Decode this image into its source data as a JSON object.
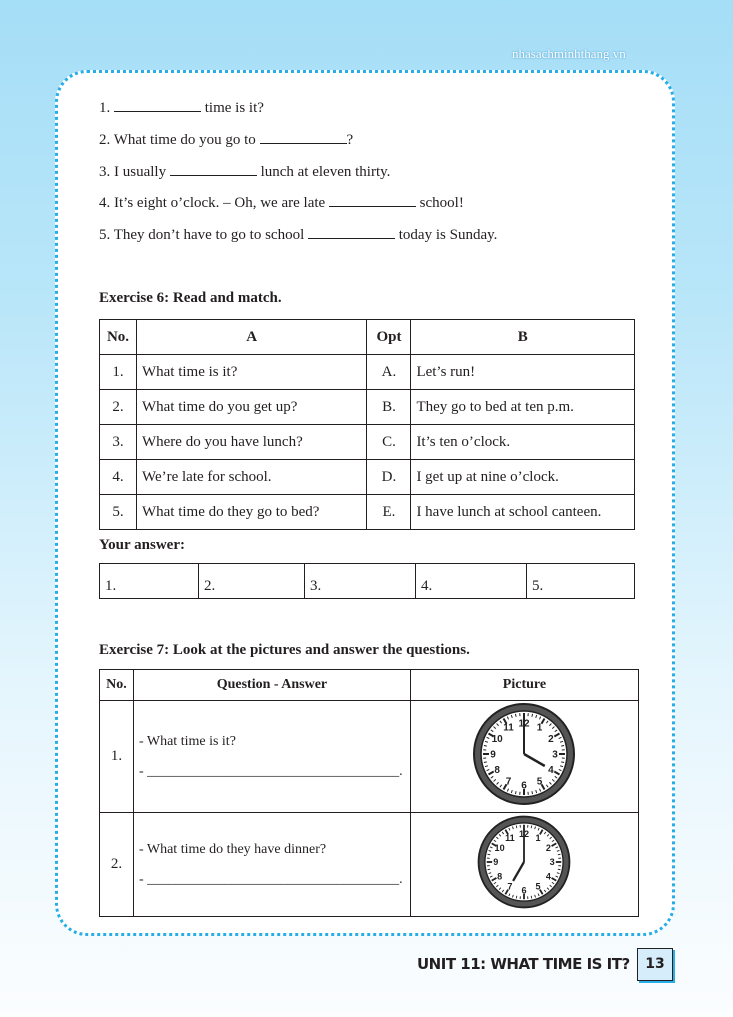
{
  "site": "nhasachminhthang.vn",
  "exercise5": {
    "items": [
      {
        "num": "1.",
        "before": "",
        "after": "time is it?"
      },
      {
        "num": "2.",
        "before": "What time do you go to",
        "after": "?"
      },
      {
        "num": "3.",
        "before": "I usually",
        "after": "lunch at eleven thirty."
      },
      {
        "num": "4.",
        "before": "It’s eight o’clock. – Oh, we are late",
        "after": "school!"
      },
      {
        "num": "5.",
        "before": "They don’t have to go to school",
        "after": "today is Sunday."
      }
    ]
  },
  "exercise6": {
    "title": "Exercise 6: Read and match.",
    "headers": [
      "No.",
      "A",
      "Opt",
      "B"
    ],
    "rows": [
      [
        "1.",
        "What time is it?",
        "A.",
        "Let’s run!"
      ],
      [
        "2.",
        "What time do you get up?",
        "B.",
        "They go to bed at ten p.m."
      ],
      [
        "3.",
        "Where do you have lunch?",
        "C.",
        "It’s ten o’clock."
      ],
      [
        "4.",
        "We’re late for school.",
        "D.",
        "I get up at nine o’clock."
      ],
      [
        "5.",
        "What time do they go to bed?",
        "E.",
        "I have lunch at school canteen."
      ]
    ],
    "answer_label": "Your answer:",
    "answers": [
      "1.",
      "2.",
      "3.",
      "4.",
      "5."
    ]
  },
  "exercise7": {
    "title": "Exercise 7: Look at the pictures and answer the questions.",
    "headers": [
      "No.",
      "Question - Answer",
      "Picture"
    ],
    "rows": [
      {
        "num": "1.",
        "question": "- What time is it?",
        "answer": "- ____________________________________.",
        "clock": {
          "hour": 4,
          "minute": 0
        }
      },
      {
        "num": "2.",
        "question": "- What time do they have dinner?",
        "answer": "- ____________________________________.",
        "clock": {
          "hour": 7,
          "minute": 0
        }
      }
    ]
  },
  "footer": {
    "unit": "UNIT 11: WHAT TIME IS IT?",
    "page": "13"
  },
  "colors": {
    "accent": "#27aee6",
    "background": "#a5def7"
  }
}
